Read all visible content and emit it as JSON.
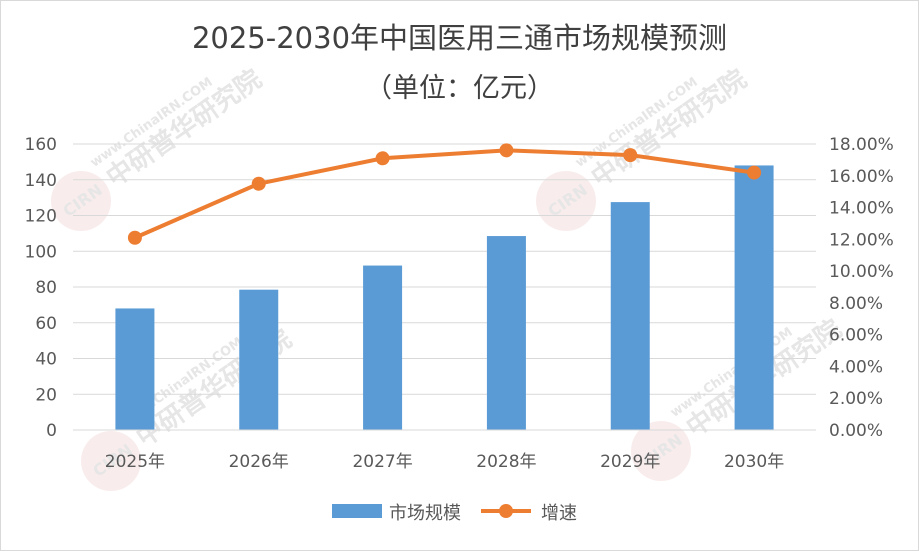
{
  "chart_data": {
    "type": "bar",
    "title": "2025-2030年中国医用三通市场规模预测",
    "subtitle": "（单位：亿元）",
    "categories": [
      "2025年",
      "2026年",
      "2027年",
      "2028年",
      "2029年",
      "2030年"
    ],
    "series": [
      {
        "name": "市场规模",
        "type": "bar",
        "axis": "left",
        "color": "#5b9bd5",
        "values": [
          68,
          78.5,
          92,
          108.5,
          127.5,
          148
        ]
      },
      {
        "name": "增速",
        "type": "line",
        "axis": "right",
        "color": "#ed7d31",
        "values": [
          0.121,
          0.155,
          0.171,
          0.176,
          0.173,
          0.162
        ]
      }
    ],
    "y_left": {
      "min": 0,
      "max": 160,
      "step": 20,
      "tick_labels": [
        "0",
        "20",
        "40",
        "60",
        "80",
        "100",
        "120",
        "140",
        "160"
      ]
    },
    "y_right": {
      "min": 0,
      "max": 0.18,
      "step": 0.02,
      "tick_labels": [
        "0.00%",
        "2.00%",
        "4.00%",
        "6.00%",
        "8.00%",
        "10.00%",
        "12.00%",
        "14.00%",
        "16.00%",
        "18.00%"
      ]
    },
    "grid": true,
    "legend_position": "bottom"
  },
  "watermark": {
    "brand": "中研普华研究院",
    "url": "www.ChinaIRN.COM",
    "logo_text": "CIRN"
  }
}
